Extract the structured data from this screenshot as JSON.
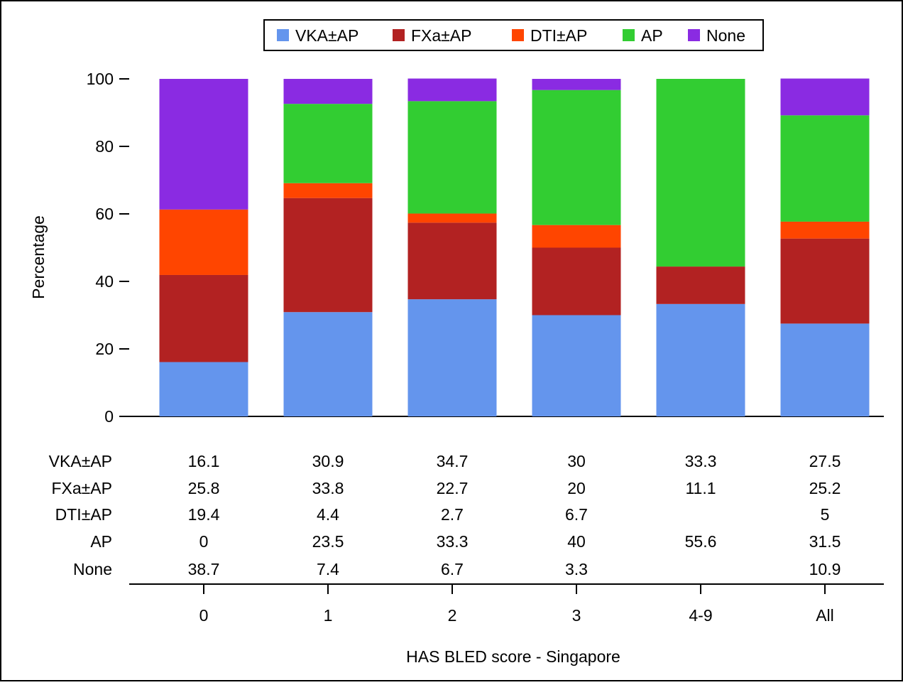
{
  "chart_data": {
    "type": "bar",
    "stacked": true,
    "xlabel": "HAS BLED score - Singapore",
    "ylabel": "Percentage",
    "ylim": [
      0,
      100
    ],
    "yticks": [
      0,
      20,
      40,
      60,
      80,
      100
    ],
    "categories": [
      "0",
      "1",
      "2",
      "3",
      "4-9",
      "All"
    ],
    "legend_position": "top-center",
    "series": [
      {
        "name": "VKA±AP",
        "color": "#6495ED",
        "values": [
          16.1,
          30.9,
          34.7,
          30,
          33.3,
          27.5
        ]
      },
      {
        "name": "FXa±AP",
        "color": "#B22222",
        "values": [
          25.8,
          33.8,
          22.7,
          20,
          11.1,
          25.2
        ]
      },
      {
        "name": "DTI±AP",
        "color": "#FF4500",
        "values": [
          19.4,
          4.4,
          2.7,
          6.7,
          null,
          5
        ]
      },
      {
        "name": "AP",
        "color": "#32CD32",
        "values": [
          0,
          23.5,
          33.3,
          40,
          55.6,
          31.5
        ]
      },
      {
        "name": "None",
        "color": "#8A2BE2",
        "values": [
          38.7,
          7.4,
          6.7,
          3.3,
          null,
          10.9
        ]
      }
    ],
    "table_rows": [
      {
        "label": "VKA±AP",
        "cells": [
          "16.1",
          "30.9",
          "34.7",
          "30",
          "33.3",
          "27.5"
        ]
      },
      {
        "label": "FXa±AP",
        "cells": [
          "25.8",
          "33.8",
          "22.7",
          "20",
          "11.1",
          "25.2"
        ]
      },
      {
        "label": "DTI±AP",
        "cells": [
          "19.4",
          "4.4",
          "2.7",
          "6.7",
          "",
          "5"
        ]
      },
      {
        "label": "AP",
        "cells": [
          "0",
          "23.5",
          "33.3",
          "40",
          "55.6",
          "31.5"
        ]
      },
      {
        "label": "None",
        "cells": [
          "38.7",
          "7.4",
          "6.7",
          "3.3",
          "",
          "10.9"
        ]
      }
    ]
  }
}
